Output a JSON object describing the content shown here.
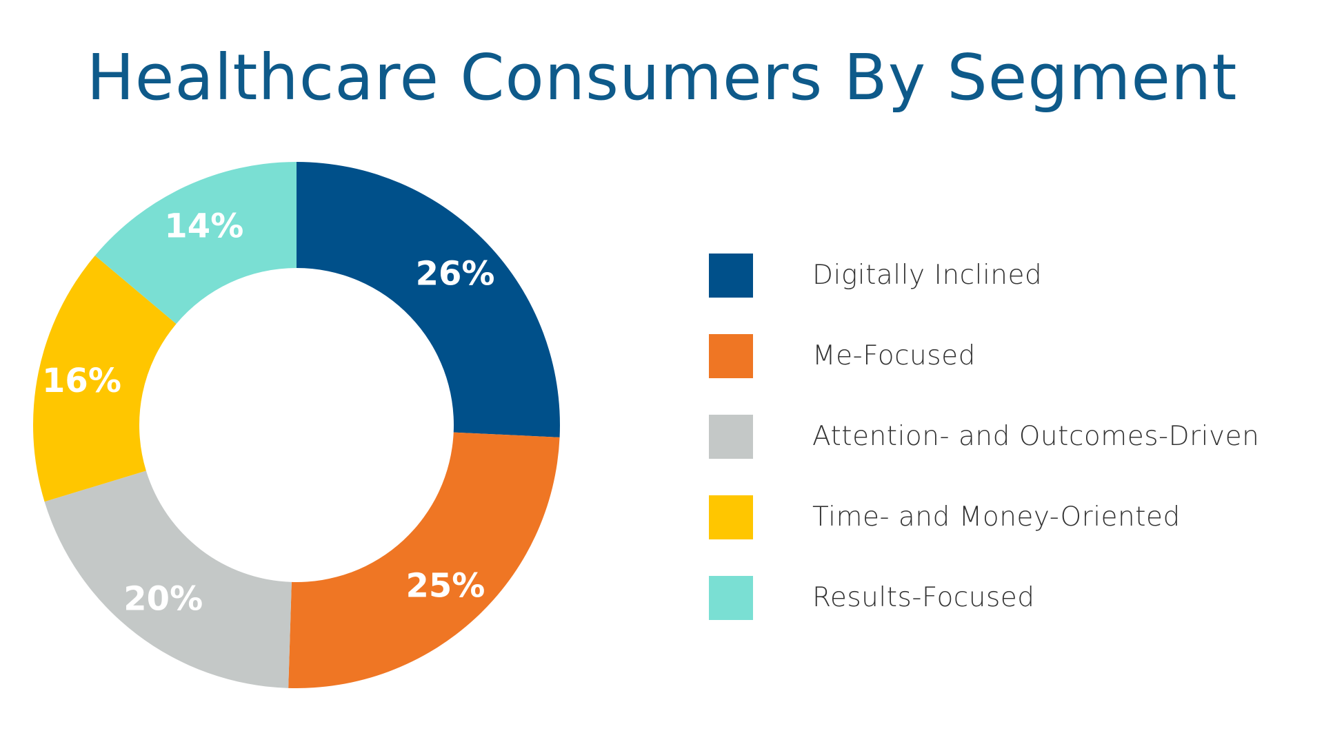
{
  "chart_data": {
    "type": "pie",
    "variant": "donut",
    "title": "Healthcare Consumers By Segment",
    "categories": [
      "Digitally Inclined",
      "Me-Focused",
      "Attention- and Outcomes-Driven",
      "Time- and Money-Oriented",
      "Results-Focused"
    ],
    "values": [
      26,
      25,
      20,
      16,
      14
    ],
    "data_labels": [
      "26%",
      "25%",
      "20%",
      "16%",
      "14%"
    ],
    "colors": [
      "#00508a",
      "#ef7624",
      "#c4c8c7",
      "#ffc600",
      "#7adfd3"
    ],
    "legend_position": "right",
    "start": "top",
    "direction": "clockwise"
  },
  "style": {
    "title_color": "#0e5a8a",
    "label_color": "#ffffff",
    "legend_text_color": "#333333"
  }
}
